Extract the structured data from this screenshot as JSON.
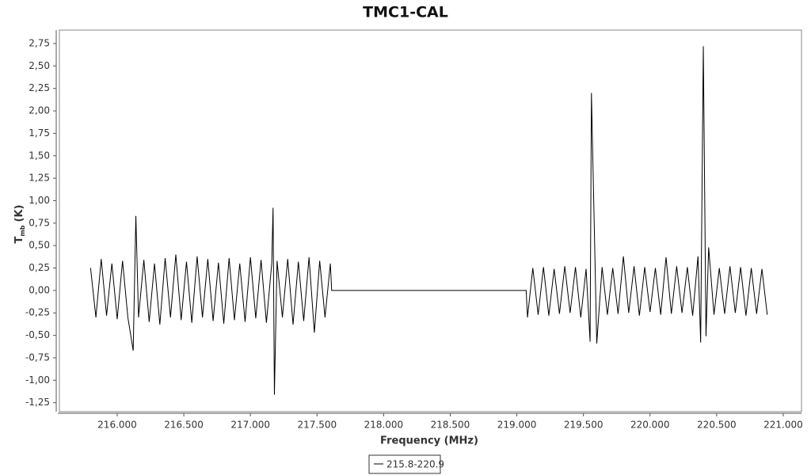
{
  "chart_data": {
    "type": "line",
    "title": "TMC1-CAL",
    "x_label": "Frequency (MHz)",
    "y_label": {
      "main": "T",
      "sub": "mb",
      "unit": "(K)"
    },
    "xlim": [
      215.566,
      221.137
    ],
    "ylim": [
      -1.35,
      2.9
    ],
    "xticks": [
      {
        "value": 216,
        "label": "216.000"
      },
      {
        "value": 216.5,
        "label": "216.500"
      },
      {
        "value": 217,
        "label": "217.000"
      },
      {
        "value": 217.5,
        "label": "217.500"
      },
      {
        "value": 218,
        "label": "218.000"
      },
      {
        "value": 218.5,
        "label": "218.500"
      },
      {
        "value": 219,
        "label": "219.000"
      },
      {
        "value": 219.5,
        "label": "219.500"
      },
      {
        "value": 220,
        "label": "220.000"
      },
      {
        "value": 220.5,
        "label": "220.500"
      },
      {
        "value": 221,
        "label": "221.000"
      }
    ],
    "yticks": [
      {
        "value": -1.25,
        "label": "-1,25"
      },
      {
        "value": -1,
        "label": "-1,00"
      },
      {
        "value": -0.75,
        "label": "-0,75"
      },
      {
        "value": -0.5,
        "label": "-0,50"
      },
      {
        "value": -0.25,
        "label": "-0,25"
      },
      {
        "value": 0,
        "label": "0,00"
      },
      {
        "value": 0.25,
        "label": "0,25"
      },
      {
        "value": 0.5,
        "label": "0,50"
      },
      {
        "value": 0.75,
        "label": "0,75"
      },
      {
        "value": 1,
        "label": "1,00"
      },
      {
        "value": 1.25,
        "label": "1,25"
      },
      {
        "value": 1.5,
        "label": "1,50"
      },
      {
        "value": 1.75,
        "label": "1,75"
      },
      {
        "value": 2,
        "label": "2,00"
      },
      {
        "value": 2.25,
        "label": "2,25"
      },
      {
        "value": 2.5,
        "label": "2,50"
      },
      {
        "value": 2.75,
        "label": "2,75"
      }
    ],
    "grid": false,
    "x": [
      215.8,
      215.84,
      215.88,
      215.92,
      215.96,
      216.0,
      216.04,
      216.08,
      216.12,
      216.14,
      216.16,
      216.2,
      216.24,
      216.28,
      216.32,
      216.36,
      216.4,
      216.44,
      216.48,
      216.52,
      216.56,
      216.6,
      216.64,
      216.68,
      216.72,
      216.76,
      216.8,
      216.84,
      216.88,
      216.92,
      216.96,
      217.0,
      217.04,
      217.08,
      217.12,
      217.16,
      217.17,
      217.18,
      217.2,
      217.24,
      217.28,
      217.32,
      217.36,
      217.4,
      217.44,
      217.48,
      217.52,
      217.56,
      217.6,
      217.61,
      219.07,
      219.08,
      219.12,
      219.16,
      219.2,
      219.24,
      219.28,
      219.32,
      219.36,
      219.4,
      219.44,
      219.48,
      219.52,
      219.55,
      219.56,
      219.6,
      219.64,
      219.68,
      219.72,
      219.76,
      219.8,
      219.84,
      219.88,
      219.92,
      219.96,
      220.0,
      220.04,
      220.08,
      220.12,
      220.16,
      220.2,
      220.24,
      220.28,
      220.32,
      220.36,
      220.38,
      220.4,
      220.42,
      220.44,
      220.48,
      220.52,
      220.56,
      220.6,
      220.64,
      220.68,
      220.72,
      220.76,
      220.8,
      220.84,
      220.88
    ],
    "series": [
      {
        "name": "215.8-220.9",
        "color": "#000000",
        "values": [
          0.25,
          -0.3,
          0.35,
          -0.28,
          0.3,
          -0.32,
          0.33,
          -0.3,
          -0.67,
          0.83,
          -0.3,
          0.34,
          -0.35,
          0.3,
          -0.38,
          0.36,
          -0.3,
          0.4,
          -0.33,
          0.32,
          -0.36,
          0.38,
          -0.3,
          0.35,
          -0.34,
          0.31,
          -0.37,
          0.36,
          -0.33,
          0.3,
          -0.35,
          0.37,
          -0.31,
          0.34,
          -0.36,
          0.3,
          0.92,
          -1.16,
          0.33,
          -0.3,
          0.35,
          -0.38,
          0.32,
          -0.34,
          0.37,
          -0.47,
          0.33,
          -0.3,
          0.3,
          0,
          0,
          -0.3,
          0.25,
          -0.27,
          0.26,
          -0.28,
          0.24,
          -0.26,
          0.27,
          -0.25,
          0.26,
          -0.3,
          0.24,
          -0.57,
          2.2,
          -0.59,
          0.26,
          -0.27,
          0.25,
          -0.26,
          0.38,
          -0.25,
          0.27,
          -0.28,
          0.26,
          -0.24,
          0.25,
          -0.27,
          0.37,
          -0.26,
          0.27,
          -0.25,
          0.26,
          -0.28,
          0.38,
          -0.58,
          2.72,
          -0.51,
          0.48,
          -0.27,
          0.25,
          -0.26,
          0.27,
          -0.25,
          0.26,
          -0.28,
          0.25,
          -0.26,
          0.24,
          -0.27
        ]
      }
    ]
  }
}
